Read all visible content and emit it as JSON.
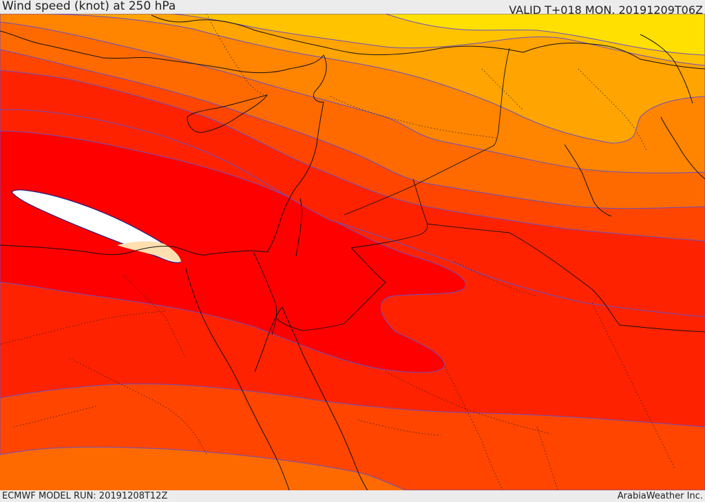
{
  "header": {
    "title": "Wind speed (knot) at 250 hPa",
    "valid": "VALID T+018 MON. 20191209T06Z"
  },
  "footer": {
    "model_run": "ECMWF MODEL RUN: 20191208T12Z",
    "credit": "ArabiaWeather Inc."
  },
  "map": {
    "variable": "wind speed at 250 hPa",
    "units": "knot",
    "region": "Eastern Mediterranean, Levant, Egypt, Arabian Peninsula",
    "colors": {
      "yellow": "#ffe000",
      "light_orange": "#ffc300",
      "orange": "#ffa400",
      "dark_orange": "#ff8400",
      "orange_red": "#ff6a00",
      "red_orange": "#ff4500",
      "red": "#ff2200",
      "bright_red": "#ff0000",
      "jet_core_white": "#ffffff",
      "jet_core_peach": "#ffdfb0",
      "contour_line": "#6a4fc0",
      "coastline": "#111111"
    }
  }
}
